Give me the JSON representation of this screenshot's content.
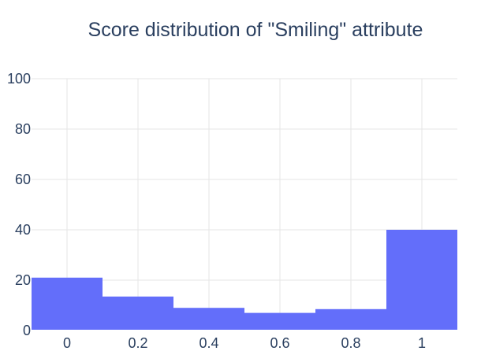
{
  "chart_data": {
    "type": "bar",
    "title": "Score distribution of \"Smiling\" attribute",
    "xlabel": "",
    "ylabel": "",
    "bins": [
      {
        "x0": -0.1,
        "x1": 0.1,
        "value": 21
      },
      {
        "x0": 0.1,
        "x1": 0.3,
        "value": 13.5
      },
      {
        "x0": 0.3,
        "x1": 0.5,
        "value": 9
      },
      {
        "x0": 0.5,
        "x1": 0.7,
        "value": 7
      },
      {
        "x0": 0.7,
        "x1": 0.9,
        "value": 8.5
      },
      {
        "x0": 0.9,
        "x1": 1.1,
        "value": 40
      }
    ],
    "xlim": [
      -0.1,
      1.1
    ],
    "ylim": [
      0,
      100
    ],
    "x_ticks": [
      {
        "value": 0,
        "label": "0"
      },
      {
        "value": 0.2,
        "label": "0.2"
      },
      {
        "value": 0.4,
        "label": "0.4"
      },
      {
        "value": 0.6,
        "label": "0.6"
      },
      {
        "value": 0.8,
        "label": "0.8"
      },
      {
        "value": 1,
        "label": "1"
      }
    ],
    "y_ticks": [
      {
        "value": 0,
        "label": "0"
      },
      {
        "value": 20,
        "label": "20"
      },
      {
        "value": 40,
        "label": "40"
      },
      {
        "value": 60,
        "label": "60"
      },
      {
        "value": 80,
        "label": "80"
      },
      {
        "value": 100,
        "label": "100"
      }
    ],
    "grid": true,
    "bar_color": "#636efa",
    "grid_color": "#e5e5e5",
    "text_color": "#2a3f5f"
  }
}
